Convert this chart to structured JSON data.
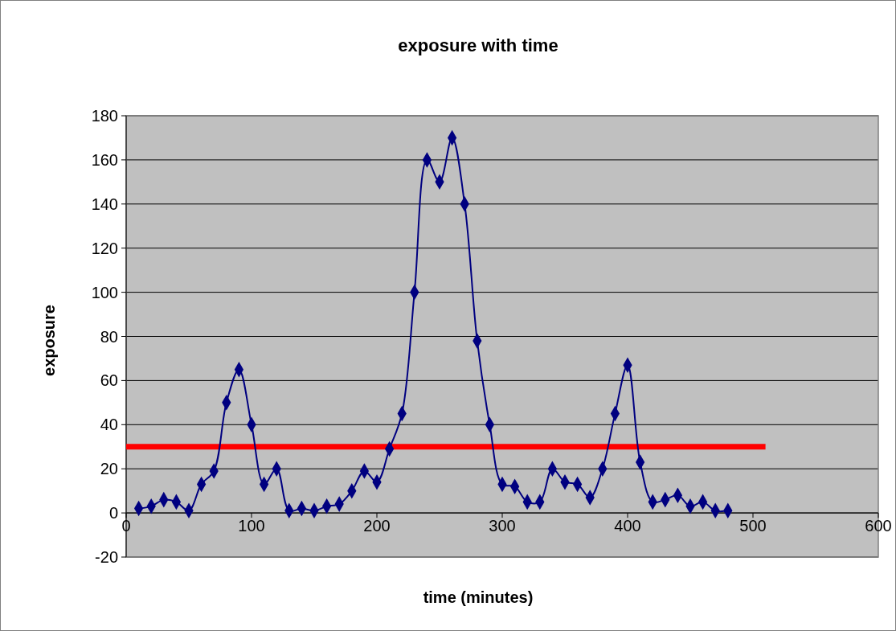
{
  "chart_data": {
    "type": "line",
    "title": "exposure with time",
    "xlabel": "time (minutes)",
    "ylabel": "exposure",
    "xlim": [
      0,
      600
    ],
    "xticks": [
      0,
      100,
      200,
      300,
      400,
      500,
      600
    ],
    "ylim": [
      -20,
      180
    ],
    "yticks": [
      -20,
      0,
      20,
      40,
      60,
      80,
      100,
      120,
      140,
      160,
      180
    ],
    "grid": "y",
    "series": [
      {
        "color": "#000080",
        "marker": "diamond",
        "x": [
          10,
          20,
          30,
          40,
          50,
          60,
          70,
          80,
          90,
          100,
          110,
          120,
          130,
          140,
          150,
          160,
          170,
          180,
          190,
          200,
          210,
          220,
          230,
          240,
          250,
          260,
          270,
          280,
          290,
          300,
          310,
          320,
          330,
          340,
          350,
          360,
          370,
          380,
          390,
          400,
          410,
          420,
          430,
          440,
          450,
          460,
          470,
          480
        ],
        "values": [
          2,
          3,
          6,
          5,
          1,
          13,
          19,
          50,
          65,
          40,
          13,
          20,
          1,
          2,
          1,
          3,
          4,
          10,
          19,
          14,
          29,
          45,
          100,
          160,
          150,
          170,
          140,
          78,
          40,
          13,
          12,
          5,
          5,
          20,
          14,
          13,
          7,
          20,
          45,
          67,
          23,
          5,
          6,
          8,
          3,
          5,
          1,
          1
        ]
      },
      {
        "color": "#ff0000",
        "marker": "none",
        "x": [
          0,
          510
        ],
        "values": [
          30,
          30
        ]
      }
    ]
  }
}
